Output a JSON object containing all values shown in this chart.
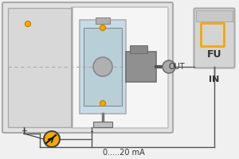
{
  "bg_color": "#f0f0f0",
  "outer_box_face": "#e2e2e2",
  "outer_box_edge": "#aaaaaa",
  "inner_box_face": "#f5f5f5",
  "inner_box_edge": "#bbbbbb",
  "left_panel_face": "#d8d8d8",
  "left_panel_edge": "#aaaaaa",
  "fan_blue": "#c5dce8",
  "fan_gray": "#b0b0b0",
  "fan_dark": "#888888",
  "motor_gray": "#909090",
  "motor_dark": "#707070",
  "shaft_gray": "#aaaaaa",
  "orange": "#f5a800",
  "orange_dark": "#cc8800",
  "text_color": "#333333",
  "line_color": "#555555",
  "fu_face": "#d4d4d4",
  "fu_edge": "#aaaaaa",
  "fu_top_face": "#c8c8c8",
  "label_out": "OUT",
  "label_in": "IN",
  "label_fu": "FU",
  "label_current": "0.....20 mA",
  "label_plus": "+",
  "label_minus": "-",
  "dashed_color": "#aaaaaa"
}
